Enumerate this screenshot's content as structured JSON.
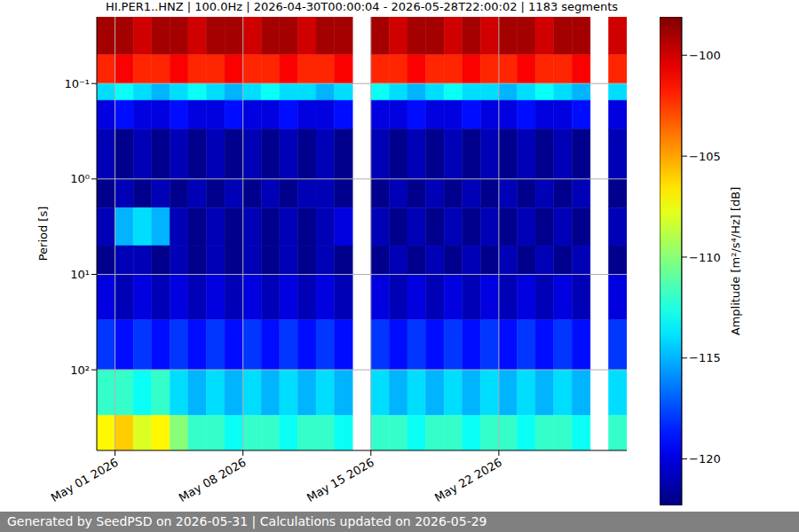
{
  "chart_data": {
    "type": "heatmap",
    "title": "HI.PER1..HNZ | 100.0Hz | 2026-04-30T00:00:04 - 2026-05-28T22:00:02 | 1183 segments",
    "footer": "Generated by SeedPSD on 2026-05-31 | Calculations updated on 2026-05-29",
    "ylabel": "Period [s]",
    "log": "y",
    "grid": true,
    "xlim": [
      "2026-04-30",
      "2026-05-29"
    ],
    "xticks": [
      {
        "value": "2026-05-01",
        "label": "May 01 2026"
      },
      {
        "value": "2026-05-08",
        "label": "May 08 2026"
      },
      {
        "value": "2026-05-15",
        "label": "May 15 2026"
      },
      {
        "value": "2026-05-22",
        "label": "May 22 2026"
      }
    ],
    "ylim": [
      0.02,
      700
    ],
    "yticks": [
      {
        "value": 0.1,
        "label": "10⁻¹"
      },
      {
        "value": 1,
        "label": "10⁰"
      },
      {
        "value": 10,
        "label": "10¹"
      },
      {
        "value": 100,
        "label": "10²"
      }
    ],
    "x_edges": [
      "2026-04-30",
      "2026-05-01",
      "2026-05-02",
      "2026-05-03",
      "2026-05-04",
      "2026-05-05",
      "2026-05-06",
      "2026-05-07",
      "2026-05-08",
      "2026-05-09",
      "2026-05-10",
      "2026-05-11",
      "2026-05-12",
      "2026-05-13",
      "2026-05-14",
      "2026-05-15",
      "2026-05-16",
      "2026-05-17",
      "2026-05-18",
      "2026-05-19",
      "2026-05-20",
      "2026-05-21",
      "2026-05-22",
      "2026-05-23",
      "2026-05-24",
      "2026-05-25",
      "2026-05-26",
      "2026-05-27",
      "2026-05-28",
      "2026-05-29"
    ],
    "y_edges": [
      0.02,
      0.05,
      0.1,
      0.15,
      0.3,
      1,
      2,
      5,
      10,
      30,
      100,
      300,
      700
    ],
    "values": [
      [
        -99,
        -99,
        -100,
        -99,
        -99,
        -100,
        -99,
        -99,
        -100,
        -99,
        -99,
        -100,
        -99,
        -99,
        null,
        -99,
        -100,
        -99,
        -99,
        -100,
        -99,
        -100,
        -99,
        -99,
        -100,
        -99,
        -99,
        null,
        -100
      ],
      [
        -102,
        -101,
        -102,
        -102,
        -101,
        -102,
        -102,
        -101,
        -102,
        -102,
        -101,
        -102,
        -102,
        -101,
        null,
        -102,
        -102,
        -101,
        -102,
        -102,
        -101,
        -102,
        -102,
        -101,
        -102,
        -102,
        -101,
        null,
        -102
      ],
      [
        -114,
        -113,
        -114,
        -115,
        -114,
        -113,
        -114,
        -115,
        -114,
        -113,
        -114,
        -114,
        -115,
        -114,
        null,
        -113,
        -114,
        -115,
        -114,
        -113,
        -114,
        -114,
        -115,
        -114,
        -113,
        -114,
        -115,
        null,
        -114
      ],
      [
        -120,
        -119,
        -120,
        -120,
        -119,
        -120,
        -120,
        -119,
        -120,
        -120,
        -119,
        -120,
        -120,
        -119,
        null,
        -120,
        -120,
        -119,
        -120,
        -120,
        -119,
        -120,
        -120,
        -119,
        -120,
        -120,
        -119,
        null,
        -120
      ],
      [
        -121,
        -122,
        -121,
        -122,
        -121,
        -122,
        -121,
        -122,
        -121,
        -122,
        -121,
        -122,
        -121,
        -122,
        null,
        -121,
        -122,
        -121,
        -122,
        -121,
        -122,
        -121,
        -122,
        -121,
        -122,
        -121,
        -122,
        null,
        -121
      ],
      [
        -122,
        -121,
        -122,
        -121,
        -122,
        -121,
        -122,
        -121,
        -122,
        -121,
        -122,
        -121,
        -121,
        -122,
        null,
        -122,
        -121,
        -122,
        -121,
        -122,
        -121,
        -122,
        -121,
        -122,
        -121,
        -122,
        -121,
        null,
        -122
      ],
      [
        -121,
        -115,
        -114,
        -115,
        -121,
        -122,
        -121,
        -122,
        -121,
        -122,
        -121,
        -122,
        -121,
        -120,
        null,
        -121,
        -122,
        -121,
        -122,
        -121,
        -122,
        -121,
        -122,
        -121,
        -122,
        -121,
        -122,
        null,
        -121
      ],
      [
        -122,
        -121,
        -121,
        -122,
        -121,
        -122,
        -121,
        -122,
        -121,
        -122,
        -121,
        -122,
        -121,
        -122,
        null,
        -122,
        -121,
        -122,
        -121,
        -122,
        -121,
        -122,
        -121,
        -122,
        -121,
        -122,
        -121,
        null,
        -122
      ],
      [
        -120,
        -121,
        -120,
        -121,
        -120,
        -121,
        -120,
        -121,
        -120,
        -121,
        -120,
        -121,
        -120,
        -121,
        null,
        -120,
        -121,
        -120,
        -121,
        -120,
        -121,
        -120,
        -121,
        -120,
        -121,
        -120,
        -121,
        null,
        -120
      ],
      [
        -118,
        -119,
        -118,
        -119,
        -118,
        -119,
        -118,
        -119,
        -118,
        -119,
        -118,
        -119,
        -118,
        -119,
        null,
        -118,
        -119,
        -118,
        -119,
        -118,
        -119,
        -118,
        -119,
        -118,
        -119,
        -118,
        -119,
        null,
        -118
      ],
      [
        -112,
        -112,
        -113,
        -112,
        -114,
        -115,
        -114,
        -115,
        -114,
        -115,
        -114,
        -115,
        -114,
        -115,
        null,
        -114,
        -115,
        -114,
        -115,
        -114,
        -115,
        -114,
        -115,
        -114,
        -115,
        -114,
        -115,
        null,
        -114
      ],
      [
        -107,
        -106,
        -108,
        -107,
        -110,
        -112,
        -112,
        -113,
        -112,
        -112,
        -113,
        -112,
        -112,
        -113,
        null,
        -112,
        -112,
        -113,
        -112,
        -112,
        -113,
        -112,
        -112,
        -113,
        -112,
        -112,
        -113,
        null,
        -112
      ]
    ],
    "colorbar": {
      "label": "Amplitude [m²/s⁴/Hz] [dB]",
      "lim": [
        -122.3,
        -98.1
      ],
      "ticks": [
        {
          "value": -120,
          "label": "−120"
        },
        {
          "value": -115,
          "label": "−115"
        },
        {
          "value": -110,
          "label": "−110"
        },
        {
          "value": -105,
          "label": "−105"
        },
        {
          "value": -100,
          "label": "−100"
        }
      ]
    }
  }
}
